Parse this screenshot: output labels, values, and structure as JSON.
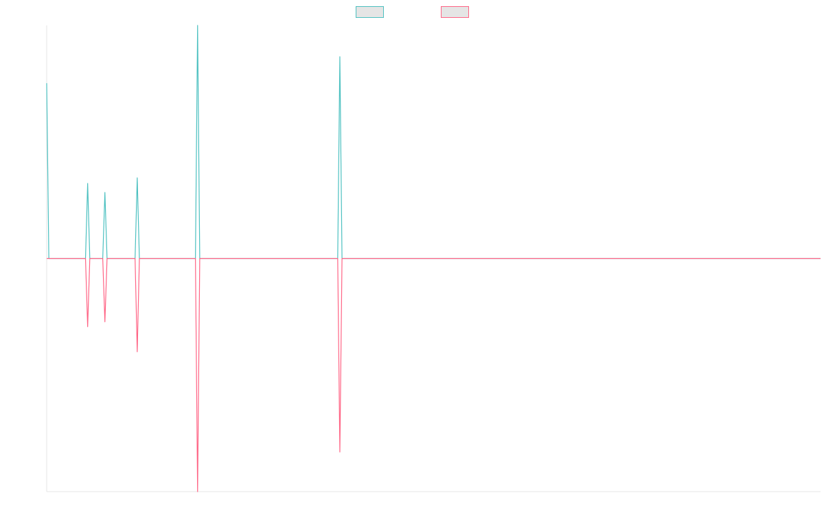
{
  "chart_data": {
    "type": "line",
    "title": "",
    "xlabel": "",
    "ylabel": "",
    "x": [
      0,
      1,
      2,
      3,
      4,
      5,
      6,
      7,
      8,
      9,
      10,
      11,
      12,
      13,
      14,
      15,
      16,
      17,
      18,
      19,
      20,
      21,
      22,
      23,
      24,
      25,
      26,
      27,
      28,
      29,
      30,
      31,
      32,
      33,
      34,
      35,
      36,
      37,
      38,
      39,
      40,
      41,
      42,
      43,
      44,
      45,
      46,
      47,
      48,
      49,
      50,
      51,
      52,
      53,
      54,
      55,
      56,
      57,
      58,
      59,
      60,
      61,
      62,
      63,
      64,
      65,
      66,
      67,
      68,
      69,
      70,
      71,
      72,
      73,
      74,
      75,
      76,
      77,
      78,
      79,
      80,
      81,
      82,
      83,
      84,
      85,
      86,
      87,
      88,
      89,
      90,
      91,
      92,
      93,
      94,
      95,
      96,
      97,
      98,
      99,
      100,
      101,
      102,
      103,
      104,
      105,
      106,
      107,
      108,
      109,
      110,
      111,
      112,
      113,
      114,
      115,
      116,
      117,
      118,
      119,
      120,
      121,
      122,
      123,
      124,
      125,
      126,
      127,
      128,
      129,
      130,
      131,
      132,
      133,
      134,
      135,
      136,
      137,
      138,
      139,
      140,
      141,
      142,
      143,
      144,
      145,
      146,
      147,
      148,
      149,
      150,
      151,
      152,
      153,
      154,
      155,
      156,
      157,
      158,
      159,
      160,
      161,
      162,
      163,
      164,
      165,
      166,
      167,
      168,
      169,
      170,
      171,
      172,
      173,
      174,
      175,
      176,
      177,
      178,
      179,
      180,
      181,
      182,
      183,
      184,
      185,
      186,
      187,
      188,
      189,
      190,
      191,
      192,
      193,
      194,
      195,
      196,
      197,
      198,
      199,
      200,
      201,
      202,
      203,
      204,
      205,
      206,
      207,
      208,
      209,
      210,
      211,
      212,
      213,
      214,
      215,
      216,
      217,
      218,
      219,
      220,
      221,
      222,
      223,
      224,
      225,
      226,
      227,
      228,
      229,
      230,
      231,
      232,
      233,
      234,
      235,
      236,
      237,
      238,
      239,
      240,
      241,
      242,
      243,
      244,
      245,
      246,
      247,
      248,
      249,
      250,
      251,
      252,
      253,
      254,
      255,
      256,
      257,
      258,
      259,
      260,
      261,
      262,
      263,
      264,
      265,
      266,
      267,
      268,
      269,
      270,
      271,
      272,
      273,
      274,
      275,
      276,
      277,
      278,
      279,
      280,
      281,
      282,
      283,
      284,
      285,
      286,
      287,
      288,
      289,
      290,
      291,
      292,
      293,
      294,
      295,
      296,
      297,
      298,
      299,
      300,
      301,
      302,
      303,
      304,
      305,
      306,
      307,
      308,
      309,
      310,
      311,
      312,
      313,
      314,
      315,
      316,
      317,
      318,
      319,
      320,
      321,
      322,
      323,
      324,
      325,
      326,
      327,
      328,
      329,
      330,
      331,
      332,
      333,
      334,
      335,
      336,
      337,
      338,
      339,
      340,
      341,
      342,
      343,
      344,
      345,
      346,
      347,
      348,
      349,
      350,
      351,
      352,
      353,
      354,
      355,
      356,
      357,
      358,
      359
    ],
    "ylim": [
      -335,
      335
    ],
    "grid": false,
    "legend_position": "top-center",
    "series": [
      {
        "color": "#4bc0c0",
        "fill": "#e5e5e5",
        "points": [
          [
            0,
            252
          ],
          [
            1,
            0
          ],
          [
            18,
            0
          ],
          [
            19,
            108
          ],
          [
            20,
            0
          ],
          [
            26,
            0
          ],
          [
            27,
            95
          ],
          [
            28,
            0
          ],
          [
            41,
            0
          ],
          [
            42,
            116
          ],
          [
            43,
            0
          ],
          [
            69,
            0
          ],
          [
            70,
            335
          ],
          [
            71,
            0
          ],
          [
            135,
            0
          ],
          [
            136,
            290
          ],
          [
            137,
            0
          ],
          [
            359,
            0
          ]
        ]
      },
      {
        "color": "#ff6384",
        "fill": "#e5e5e5",
        "points": [
          [
            0,
            0
          ],
          [
            1,
            0
          ],
          [
            18,
            0
          ],
          [
            19,
            -98
          ],
          [
            20,
            0
          ],
          [
            26,
            0
          ],
          [
            27,
            -91
          ],
          [
            28,
            0
          ],
          [
            41,
            0
          ],
          [
            42,
            -134
          ],
          [
            43,
            0
          ],
          [
            69,
            0
          ],
          [
            70,
            -335
          ],
          [
            71,
            0
          ],
          [
            135,
            0
          ],
          [
            136,
            -278
          ],
          [
            137,
            0
          ],
          [
            359,
            0
          ]
        ]
      }
    ]
  }
}
